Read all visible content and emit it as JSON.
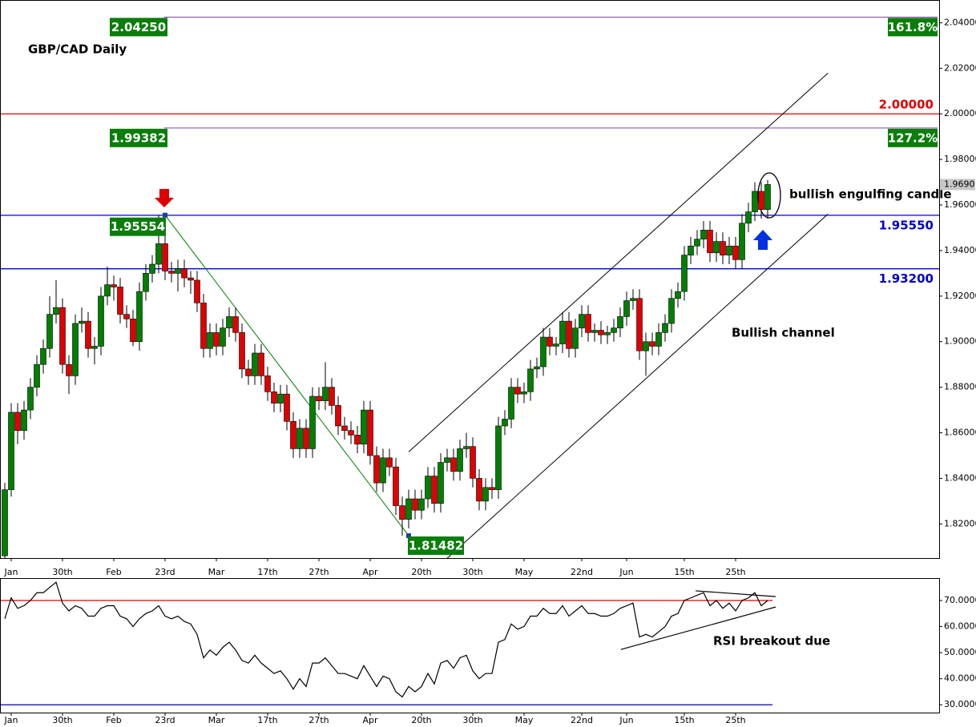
{
  "chart_data": {
    "type": "candlestick",
    "title": "GBP/CAD Daily",
    "up_color": "#008000",
    "down_color": "#e00000",
    "ylim": [
      1.805,
      2.05
    ],
    "yticks": [
      {
        "value": 2.04,
        "label": "2.04000"
      },
      {
        "value": 2.02,
        "label": "2.02000"
      },
      {
        "value": 2.0,
        "label": "2.00000"
      },
      {
        "value": 1.98,
        "label": "1.98000"
      },
      {
        "value": 1.96,
        "label": "1.96000"
      },
      {
        "value": 1.94,
        "label": "1.94000"
      },
      {
        "value": 1.92,
        "label": "1.92000"
      },
      {
        "value": 1.9,
        "label": "1.90000"
      },
      {
        "value": 1.88,
        "label": "1.88000"
      },
      {
        "value": 1.86,
        "label": "1.86000"
      },
      {
        "value": 1.84,
        "label": "1.84000"
      },
      {
        "value": 1.82,
        "label": "1.82000"
      }
    ],
    "xticks": [
      {
        "value": 1,
        "label": "Jan"
      },
      {
        "value": 9,
        "label": "30th"
      },
      {
        "value": 17,
        "label": "Feb"
      },
      {
        "value": 25,
        "label": "23rd"
      },
      {
        "value": 33,
        "label": "Mar"
      },
      {
        "value": 41,
        "label": "17th"
      },
      {
        "value": 49,
        "label": "27th"
      },
      {
        "value": 57,
        "label": "Apr"
      },
      {
        "value": 65,
        "label": "20th"
      },
      {
        "value": 73,
        "label": "30th"
      },
      {
        "value": 81,
        "label": "May"
      },
      {
        "value": 90,
        "label": "22nd"
      },
      {
        "value": 97,
        "label": "Jun"
      },
      {
        "value": 106,
        "label": "15th"
      },
      {
        "value": 114,
        "label": "25th"
      }
    ],
    "last_price": {
      "value": 1.969,
      "label": "1.9690"
    },
    "candles": [
      [
        1.806,
        1.838,
        1.805,
        1.835
      ],
      [
        1.835,
        1.873,
        1.832,
        1.869
      ],
      [
        1.869,
        1.873,
        1.855,
        1.861
      ],
      [
        1.861,
        1.874,
        1.857,
        1.87
      ],
      [
        1.87,
        1.884,
        1.866,
        1.88
      ],
      [
        1.88,
        1.894,
        1.876,
        1.89
      ],
      [
        1.89,
        1.901,
        1.886,
        1.897
      ],
      [
        1.897,
        1.92,
        1.893,
        1.912
      ],
      [
        1.912,
        1.927,
        1.908,
        1.915
      ],
      [
        1.915,
        1.919,
        1.886,
        1.89
      ],
      [
        1.89,
        1.894,
        1.877,
        1.885
      ],
      [
        1.885,
        1.912,
        1.881,
        1.908
      ],
      [
        1.908,
        1.915,
        1.904,
        1.909
      ],
      [
        1.909,
        1.913,
        1.893,
        1.897
      ],
      [
        1.897,
        1.902,
        1.89,
        1.898
      ],
      [
        1.898,
        1.924,
        1.894,
        1.92
      ],
      [
        1.92,
        1.933,
        1.916,
        1.925
      ],
      [
        1.925,
        1.929,
        1.918,
        1.924
      ],
      [
        1.924,
        1.928,
        1.908,
        1.912
      ],
      [
        1.912,
        1.916,
        1.906,
        1.91
      ],
      [
        1.91,
        1.914,
        1.898,
        1.9
      ],
      [
        1.9,
        1.926,
        1.896,
        1.922
      ],
      [
        1.922,
        1.934,
        1.918,
        1.93
      ],
      [
        1.93,
        1.938,
        1.926,
        1.934
      ],
      [
        1.934,
        1.9555,
        1.93,
        1.943
      ],
      [
        1.943,
        1.947,
        1.927,
        1.931
      ],
      [
        1.931,
        1.935,
        1.926,
        1.93
      ],
      [
        1.93,
        1.936,
        1.922,
        1.932
      ],
      [
        1.932,
        1.936,
        1.924,
        1.928
      ],
      [
        1.928,
        1.931,
        1.921,
        1.927
      ],
      [
        1.927,
        1.931,
        1.913,
        1.917
      ],
      [
        1.917,
        1.921,
        1.893,
        1.897
      ],
      [
        1.897,
        1.908,
        1.893,
        1.904
      ],
      [
        1.904,
        1.908,
        1.894,
        1.898
      ],
      [
        1.898,
        1.91,
        1.894,
        1.906
      ],
      [
        1.906,
        1.915,
        1.902,
        1.911
      ],
      [
        1.911,
        1.915,
        1.9,
        1.904
      ],
      [
        1.904,
        1.908,
        1.884,
        1.888
      ],
      [
        1.888,
        1.892,
        1.881,
        1.885
      ],
      [
        1.885,
        1.899,
        1.881,
        1.895
      ],
      [
        1.895,
        1.899,
        1.881,
        1.885
      ],
      [
        1.885,
        1.889,
        1.874,
        1.878
      ],
      [
        1.878,
        1.882,
        1.869,
        1.873
      ],
      [
        1.873,
        1.881,
        1.869,
        1.877
      ],
      [
        1.877,
        1.881,
        1.861,
        1.865
      ],
      [
        1.865,
        1.869,
        1.849,
        1.853
      ],
      [
        1.853,
        1.866,
        1.849,
        1.862
      ],
      [
        1.862,
        1.866,
        1.849,
        1.853
      ],
      [
        1.853,
        1.88,
        1.849,
        1.876
      ],
      [
        1.876,
        1.88,
        1.87,
        1.874
      ],
      [
        1.874,
        1.891,
        1.87,
        1.88
      ],
      [
        1.88,
        1.884,
        1.868,
        1.872
      ],
      [
        1.872,
        1.876,
        1.859,
        1.863
      ],
      [
        1.863,
        1.867,
        1.857,
        1.861
      ],
      [
        1.861,
        1.865,
        1.855,
        1.859
      ],
      [
        1.859,
        1.863,
        1.851,
        1.855
      ],
      [
        1.855,
        1.874,
        1.851,
        1.87
      ],
      [
        1.87,
        1.874,
        1.846,
        1.85
      ],
      [
        1.85,
        1.854,
        1.834,
        1.838
      ],
      [
        1.838,
        1.853,
        1.834,
        1.849
      ],
      [
        1.849,
        1.853,
        1.841,
        1.845
      ],
      [
        1.845,
        1.849,
        1.824,
        1.828
      ],
      [
        1.828,
        1.832,
        1.8148,
        1.822
      ],
      [
        1.822,
        1.835,
        1.818,
        1.831
      ],
      [
        1.831,
        1.835,
        1.822,
        1.826
      ],
      [
        1.826,
        1.835,
        1.822,
        1.831
      ],
      [
        1.831,
        1.845,
        1.827,
        1.841
      ],
      [
        1.841,
        1.845,
        1.825,
        1.829
      ],
      [
        1.829,
        1.851,
        1.825,
        1.847
      ],
      [
        1.847,
        1.853,
        1.843,
        1.849
      ],
      [
        1.849,
        1.853,
        1.839,
        1.843
      ],
      [
        1.843,
        1.857,
        1.839,
        1.853
      ],
      [
        1.853,
        1.86,
        1.849,
        1.854
      ],
      [
        1.854,
        1.858,
        1.836,
        1.84
      ],
      [
        1.84,
        1.844,
        1.826,
        1.83
      ],
      [
        1.83,
        1.84,
        1.826,
        1.836
      ],
      [
        1.836,
        1.84,
        1.831,
        1.835
      ],
      [
        1.835,
        1.867,
        1.831,
        1.863
      ],
      [
        1.863,
        1.87,
        1.859,
        1.866
      ],
      [
        1.866,
        1.884,
        1.862,
        1.88
      ],
      [
        1.88,
        1.884,
        1.873,
        1.877
      ],
      [
        1.877,
        1.882,
        1.873,
        1.878
      ],
      [
        1.878,
        1.892,
        1.874,
        1.888
      ],
      [
        1.888,
        1.893,
        1.884,
        1.889
      ],
      [
        1.889,
        1.906,
        1.885,
        1.902
      ],
      [
        1.902,
        1.906,
        1.894,
        1.898
      ],
      [
        1.898,
        1.902,
        1.894,
        1.899
      ],
      [
        1.899,
        1.913,
        1.895,
        1.909
      ],
      [
        1.909,
        1.913,
        1.893,
        1.897
      ],
      [
        1.897,
        1.91,
        1.893,
        1.906
      ],
      [
        1.906,
        1.916,
        1.902,
        1.912
      ],
      [
        1.912,
        1.916,
        1.9,
        1.904
      ],
      [
        1.904,
        1.908,
        1.9,
        1.905
      ],
      [
        1.905,
        1.909,
        1.899,
        1.903
      ],
      [
        1.903,
        1.907,
        1.899,
        1.904
      ],
      [
        1.904,
        1.91,
        1.9,
        1.906
      ],
      [
        1.906,
        1.915,
        1.902,
        1.911
      ],
      [
        1.911,
        1.922,
        1.907,
        1.918
      ],
      [
        1.918,
        1.923,
        1.914,
        1.919
      ],
      [
        1.919,
        1.923,
        1.892,
        1.896
      ],
      [
        1.896,
        1.904,
        1.885,
        1.9
      ],
      [
        1.9,
        1.904,
        1.894,
        1.898
      ],
      [
        1.898,
        1.908,
        1.894,
        1.904
      ],
      [
        1.904,
        1.912,
        1.9,
        1.908
      ],
      [
        1.908,
        1.923,
        1.904,
        1.919
      ],
      [
        1.919,
        1.926,
        1.915,
        1.922
      ],
      [
        1.922,
        1.942,
        1.918,
        1.938
      ],
      [
        1.938,
        1.946,
        1.934,
        1.942
      ],
      [
        1.942,
        1.949,
        1.938,
        1.945
      ],
      [
        1.945,
        1.953,
        1.941,
        1.949
      ],
      [
        1.949,
        1.953,
        1.935,
        1.939
      ],
      [
        1.939,
        1.948,
        1.935,
        1.944
      ],
      [
        1.944,
        1.948,
        1.934,
        1.938
      ],
      [
        1.938,
        1.946,
        1.934,
        1.942
      ],
      [
        1.942,
        1.946,
        1.932,
        1.936
      ],
      [
        1.936,
        1.956,
        1.932,
        1.952
      ],
      [
        1.952,
        1.961,
        1.948,
        1.957
      ],
      [
        1.957,
        1.97,
        1.953,
        1.966
      ],
      [
        1.966,
        1.97,
        1.954,
        1.958
      ],
      [
        1.958,
        1.971,
        1.954,
        1.969
      ]
    ],
    "levels": [
      {
        "value": 2.0425,
        "label": "2.04250",
        "pct": "161.8%",
        "color": "#8040a0"
      },
      {
        "value": 1.99382,
        "label": "1.99382",
        "pct": "127.2%",
        "color": "#8040a0"
      },
      {
        "value": 2.0,
        "label": "2.00000",
        "color": "#e00000"
      },
      {
        "value": 1.9555,
        "label": "1.95550",
        "color": "#0000cc"
      },
      {
        "value": 1.932,
        "label": "1.93200",
        "color": "#0000cc"
      }
    ],
    "points": [
      {
        "x": 25,
        "value": 1.95554,
        "label": "1.95554"
      },
      {
        "x": 63,
        "value": 1.81482,
        "label": "1.81482"
      }
    ],
    "lines": [
      {
        "from": [
          25,
          1.95554
        ],
        "to": [
          63,
          1.81482
        ],
        "color": "#008000"
      },
      {
        "from": [
          63,
          1.8516
        ],
        "to": [
          128.4,
          2.0179
        ],
        "color": "#000000"
      },
      {
        "from": [
          69,
          1.8049
        ],
        "to": [
          128.4,
          1.956
        ],
        "color": "#000000"
      }
    ],
    "annotations": [
      "bullish engulfing candle",
      "Bullish channel",
      "RSI breakout due"
    ],
    "rsi": {
      "color": "#000000",
      "ylim": [
        27,
        78.6
      ],
      "yticks": [
        {
          "value": 70,
          "label": "70.0000"
        },
        {
          "value": 60,
          "label": "60.0000"
        },
        {
          "value": 50,
          "label": "50.0000"
        },
        {
          "value": 40,
          "label": "40.0000"
        },
        {
          "value": 30,
          "label": "30.0000"
        }
      ],
      "levels": [
        {
          "value": 70,
          "color": "#e00000"
        },
        {
          "value": 30,
          "color": "#0000aa"
        }
      ],
      "lines": [
        {
          "from": [
            107.75,
            73.7
          ],
          "to": [
            120.25,
            71.5
          ]
        },
        {
          "from": [
            96.1,
            51.2
          ],
          "to": [
            120.25,
            67.5
          ]
        }
      ],
      "values": [
        63,
        71,
        67,
        68,
        70,
        73,
        73,
        75,
        77,
        69,
        66,
        68,
        67,
        64,
        64,
        67,
        68,
        68,
        64,
        63,
        60,
        63,
        65,
        66,
        68,
        64,
        63,
        64,
        62,
        61,
        57,
        48,
        51,
        49,
        52,
        54,
        51,
        47,
        46,
        49,
        46,
        44,
        42,
        43,
        40,
        36,
        40,
        37,
        46,
        46,
        48,
        45,
        42,
        42,
        41,
        40,
        45,
        41,
        37,
        41,
        40,
        35,
        33,
        37,
        35,
        37,
        42,
        38,
        46,
        47,
        44,
        48,
        49,
        43,
        40,
        42,
        42,
        54,
        55,
        61,
        59,
        60,
        64,
        64,
        67,
        65,
        65,
        68,
        64,
        66,
        68,
        65,
        65,
        64,
        64,
        65,
        67,
        68,
        69,
        56,
        57,
        56,
        58,
        60,
        64,
        65,
        70,
        71,
        72,
        73,
        68,
        70,
        67,
        69,
        66,
        70,
        71,
        73,
        68,
        70
      ]
    }
  }
}
